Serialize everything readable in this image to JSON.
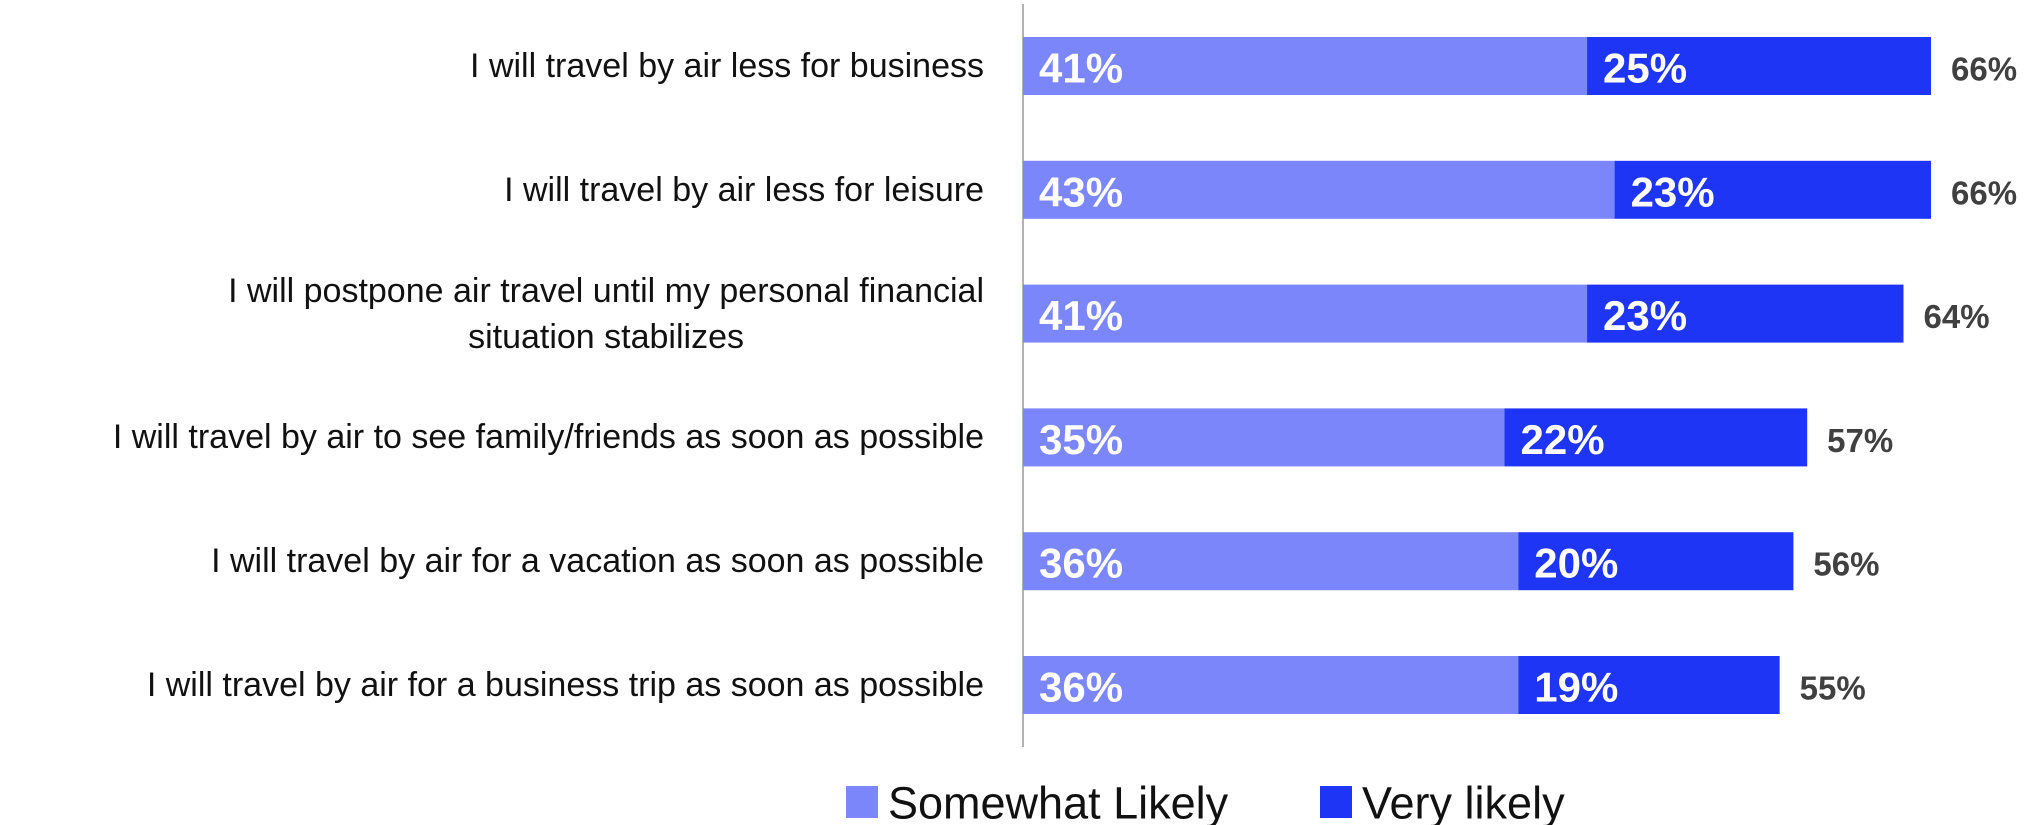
{
  "chart_data": {
    "type": "stacked-bar-horizontal",
    "categories": [
      "I will travel by air less for business",
      "I will travel by air less for leisure",
      "I will postpone air travel until my personal financial\nsituation stabilizes",
      "I will travel by air to see family/friends as soon as possible",
      "I will travel by air for a vacation as soon as possible",
      "I will travel by air for a business trip as soon as possible"
    ],
    "series": [
      {
        "name": "Somewhat Likely",
        "color": "#7b86fb",
        "values": [
          41,
          43,
          41,
          35,
          36,
          36
        ],
        "value_labels": [
          "41%",
          "43%",
          "41%",
          "35%",
          "36%",
          "36%"
        ]
      },
      {
        "name": "Very likely",
        "color": "#1f35f5",
        "values": [
          25,
          23,
          23,
          22,
          20,
          19
        ],
        "value_labels": [
          "25%",
          "23%",
          "23%",
          "22%",
          "20%",
          "19%"
        ]
      }
    ],
    "totals": {
      "values": [
        66,
        66,
        64,
        57,
        56,
        55
      ],
      "value_labels": [
        "66%",
        "66%",
        "64%",
        "57%",
        "56%",
        "55%"
      ]
    },
    "legend": "bottom"
  }
}
